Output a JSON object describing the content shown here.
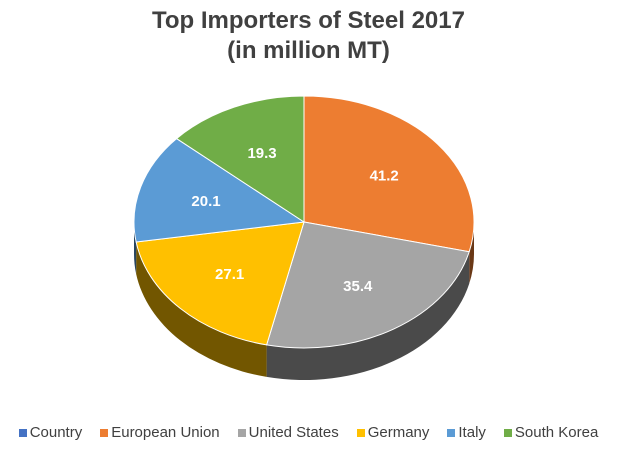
{
  "chart_data": {
    "type": "pie",
    "title_line1": "Top Importers of Steel 2017",
    "title_line2": "(in million MT)",
    "legend_placement": "bottom",
    "legend": [
      {
        "label": "Country",
        "color": "#4472c4"
      },
      {
        "label": "European Union",
        "color": "#ed7d31"
      },
      {
        "label": "United States",
        "color": "#a5a5a5"
      },
      {
        "label": "Germany",
        "color": "#ffc000"
      },
      {
        "label": "Italy",
        "color": "#5b9bd5"
      },
      {
        "label": "South Korea",
        "color": "#70ad47"
      }
    ],
    "slices": [
      {
        "label": "European Union",
        "value": 41.2,
        "value_label": "41.2",
        "color": "#ed7d31"
      },
      {
        "label": "United States",
        "value": 35.4,
        "value_label": "35.4",
        "color": "#a5a5a5"
      },
      {
        "label": "Germany",
        "value": 27.1,
        "value_label": "27.1",
        "color": "#ffc000"
      },
      {
        "label": "Italy",
        "value": 20.1,
        "value_label": "20.1",
        "color": "#5b9bd5"
      },
      {
        "label": "South Korea",
        "value": 19.3,
        "value_label": "19.3",
        "color": "#70ad47"
      }
    ]
  }
}
